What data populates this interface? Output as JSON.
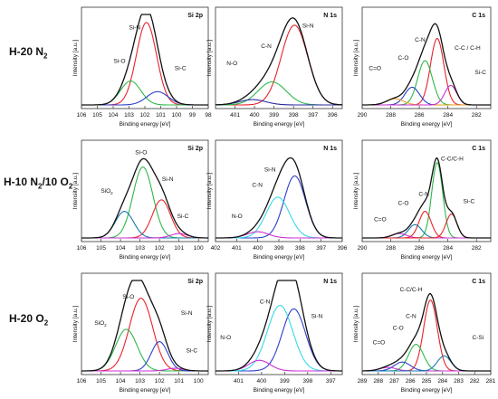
{
  "figure": {
    "row_labels": [
      {
        "main": "H-20 N",
        "sub": "2",
        "rest": ""
      },
      {
        "main": "H-10 N",
        "sub": "2",
        "rest": "/10 O",
        "sub2": "2"
      },
      {
        "main": "H-20 O",
        "sub": "2",
        "rest": ""
      }
    ],
    "colors": {
      "envelope": "#111111",
      "red": "#e8232a",
      "green": "#2db84a",
      "blue": "#2c3fc8",
      "teal": "#1a7ab0",
      "cyan": "#36d9e8",
      "magenta": "#cc2fd0",
      "navy": "#2a2aa0",
      "orange": "#e8a020",
      "frame": "#333333"
    }
  },
  "chart_data": [
    {
      "type": "line",
      "panel": "Si 2p",
      "row": 0,
      "xlabel": "Binding energy [eV]",
      "ylabel": "Intensity [a.u.]",
      "xlim": [
        106,
        98
      ],
      "xticks": [
        106,
        105,
        104,
        103,
        102,
        101,
        100,
        99,
        98
      ],
      "series": [
        {
          "name": "Si-N",
          "color": "red",
          "center": 101.9,
          "amp": 0.93,
          "width": 0.75
        },
        {
          "name": "Si-O",
          "color": "green",
          "center": 102.9,
          "amp": 0.27,
          "width": 0.75
        },
        {
          "name": "Si-C",
          "color": "blue",
          "center": 101.2,
          "amp": 0.15,
          "width": 0.8
        }
      ]
    },
    {
      "type": "line",
      "panel": "N 1s",
      "row": 0,
      "xlabel": "Binding energy [eV]",
      "ylabel": "Intensity [a.u.]",
      "xlim": [
        402,
        395.5
      ],
      "xticks": [
        401,
        400,
        399,
        398,
        397,
        396
      ],
      "series": [
        {
          "name": "Si-N",
          "color": "red",
          "center": 397.95,
          "amp": 0.9,
          "width": 0.8
        },
        {
          "name": "C-N",
          "color": "green",
          "center": 399.1,
          "amp": 0.26,
          "width": 0.85
        },
        {
          "name": "N-O",
          "color": "navy",
          "center": 400.1,
          "amp": 0.06,
          "width": 0.8
        }
      ]
    },
    {
      "type": "line",
      "panel": "C 1s",
      "row": 0,
      "xlabel": "Binding energy [eV]",
      "ylabel": "Intensity [a.u.]",
      "xlim": [
        290,
        281
      ],
      "xticks": [
        290,
        288,
        286,
        284,
        282
      ],
      "series": [
        {
          "name": "C-C / C-H",
          "color": "red",
          "center": 284.75,
          "amp": 0.75,
          "width": 0.55
        },
        {
          "name": "C-N",
          "color": "green",
          "center": 285.6,
          "amp": 0.5,
          "width": 0.6
        },
        {
          "name": "C-O",
          "color": "blue",
          "center": 286.5,
          "amp": 0.2,
          "width": 0.6
        },
        {
          "name": "C=O",
          "color": "orange",
          "center": 287.7,
          "amp": 0.07,
          "width": 0.7
        },
        {
          "name": "Si-C",
          "color": "magenta",
          "center": 283.8,
          "amp": 0.22,
          "width": 0.5
        }
      ]
    },
    {
      "type": "line",
      "panel": "Si 2p",
      "row": 1,
      "xlabel": "Binding energy [eV]",
      "ylabel": "Intensity [a.u.]",
      "xlim": [
        106,
        99.5
      ],
      "xticks": [
        106,
        105,
        104,
        103,
        102,
        101,
        100
      ],
      "series": [
        {
          "name": "Si-O",
          "color": "green",
          "center": 102.85,
          "amp": 0.8,
          "width": 0.6
        },
        {
          "name": "Si-N",
          "color": "red",
          "center": 101.9,
          "amp": 0.43,
          "width": 0.55
        },
        {
          "name": "SiO",
          "sub": "2",
          "color": "teal",
          "center": 103.8,
          "amp": 0.3,
          "width": 0.55
        },
        {
          "name": "Si-C",
          "color": "magenta",
          "center": 101.0,
          "amp": 0.05,
          "width": 0.5
        }
      ]
    },
    {
      "type": "line",
      "panel": "N 1s",
      "row": 1,
      "xlabel": "Binding energy [eV]",
      "ylabel": "Intensity [a.u.]",
      "xlim": [
        402,
        396
      ],
      "xticks": [
        402,
        401,
        400,
        399,
        398,
        397,
        396
      ],
      "series": [
        {
          "name": "Si-N",
          "color": "blue",
          "center": 398.25,
          "amp": 0.7,
          "width": 0.6
        },
        {
          "name": "C-N",
          "color": "cyan",
          "center": 399.05,
          "amp": 0.46,
          "width": 0.65
        },
        {
          "name": "N-O",
          "color": "magenta",
          "center": 400.0,
          "amp": 0.07,
          "width": 0.6
        }
      ]
    },
    {
      "type": "line",
      "panel": "C 1s",
      "row": 1,
      "xlabel": "Binding energy [eV]",
      "ylabel": "Intensity [a.u.]",
      "xlim": [
        290,
        281
      ],
      "xticks": [
        290,
        288,
        286,
        284,
        282
      ],
      "series": [
        {
          "name": "C-C/C-H",
          "color": "green",
          "center": 284.75,
          "amp": 0.85,
          "width": 0.45
        },
        {
          "name": "C-N",
          "color": "red",
          "center": 285.6,
          "amp": 0.3,
          "width": 0.5
        },
        {
          "name": "C-O",
          "color": "teal",
          "center": 286.3,
          "amp": 0.15,
          "width": 0.55
        },
        {
          "name": "C=O",
          "color": "magenta",
          "center": 287.4,
          "amp": 0.05,
          "width": 0.6
        },
        {
          "name": "Si-C",
          "color": "red",
          "center": 283.75,
          "amp": 0.27,
          "width": 0.45
        }
      ]
    },
    {
      "type": "line",
      "panel": "Si 2p",
      "row": 2,
      "xlabel": "Binding energy [eV]",
      "ylabel": "Intensity [a.u.]",
      "xlim": [
        106,
        99.5
      ],
      "xticks": [
        106,
        105,
        104,
        103,
        102,
        101,
        100
      ],
      "series": [
        {
          "name": "Si-O",
          "color": "red",
          "center": 102.95,
          "amp": 0.82,
          "width": 0.7
        },
        {
          "name": "SiO",
          "sub": "2",
          "color": "green",
          "center": 103.7,
          "amp": 0.47,
          "width": 0.65
        },
        {
          "name": "Si-N",
          "color": "blue",
          "center": 102.0,
          "amp": 0.33,
          "width": 0.5
        },
        {
          "name": "Si-C",
          "color": "magenta",
          "center": 101.2,
          "amp": 0.03,
          "width": 0.5
        }
      ]
    },
    {
      "type": "line",
      "panel": "N 1s",
      "row": 2,
      "xlabel": "Binding energy [eV]",
      "ylabel": "Intensity [a.u.]",
      "xlim": [
        402,
        396.5
      ],
      "xticks": [
        401,
        400,
        399,
        398,
        397
      ],
      "series": [
        {
          "name": "Si-N",
          "color": "blue",
          "center": 398.6,
          "amp": 0.7,
          "width": 0.6
        },
        {
          "name": "C-N",
          "color": "cyan",
          "center": 399.2,
          "amp": 0.74,
          "width": 0.65
        },
        {
          "name": "N-O",
          "color": "magenta",
          "center": 400.1,
          "amp": 0.12,
          "width": 0.55
        }
      ]
    },
    {
      "type": "line",
      "panel": "C 1s",
      "row": 2,
      "xlabel": "Binding energy [eV]",
      "ylabel": "Intensity [a.u.]",
      "xlim": [
        289,
        281
      ],
      "xticks": [
        289,
        288,
        287,
        286,
        285,
        284,
        283,
        282,
        281
      ],
      "series": [
        {
          "name": "C-C/C-H",
          "color": "red",
          "center": 284.75,
          "amp": 0.8,
          "width": 0.5
        },
        {
          "name": "C-N",
          "color": "green",
          "center": 285.65,
          "amp": 0.3,
          "width": 0.55
        },
        {
          "name": "C-O",
          "color": "blue",
          "center": 286.5,
          "amp": 0.1,
          "width": 0.6
        },
        {
          "name": "C=O",
          "color": "magenta",
          "center": 287.4,
          "amp": 0.04,
          "width": 0.6
        },
        {
          "name": "C-Si",
          "color": "teal",
          "center": 283.9,
          "amp": 0.17,
          "width": 0.5
        }
      ]
    }
  ]
}
